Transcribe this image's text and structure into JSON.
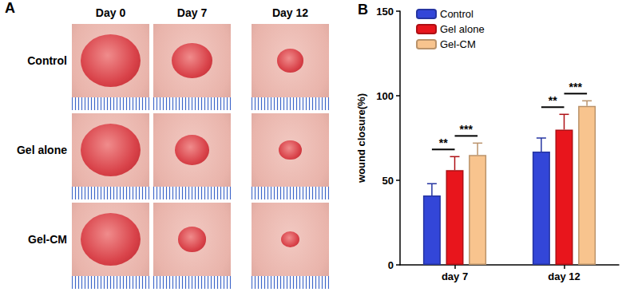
{
  "photo_panel": {
    "label": "A",
    "columns": [
      "Day 0",
      "Day 7",
      "Day 12"
    ],
    "rows": [
      "Control",
      "Gel alone",
      "Gel-CM"
    ]
  },
  "chart_data": {
    "type": "bar",
    "panel_label": "B",
    "categories": [
      "day 7",
      "day 12"
    ],
    "series": [
      {
        "name": "Control",
        "color": "#3346d8",
        "values": [
          41,
          67
        ],
        "errors": [
          7,
          8
        ]
      },
      {
        "name": "Gel alone",
        "color": "#e8151c",
        "values": [
          56,
          80
        ],
        "errors": [
          8,
          9
        ]
      },
      {
        "name": "Gel-CM",
        "color": "#f8c48e",
        "values": [
          65,
          94
        ],
        "errors": [
          7,
          3
        ]
      }
    ],
    "y_label": "wound closure(%)",
    "ylim": [
      0,
      150
    ],
    "yticks": [
      0,
      50,
      100,
      150
    ],
    "grid": false,
    "legend": "upper left",
    "annotations": [
      {
        "text": "**",
        "category": "day 7",
        "from": "Control",
        "to": "Gel alone"
      },
      {
        "text": "***",
        "category": "day 7",
        "from": "Gel alone",
        "to": "Gel-CM"
      },
      {
        "text": "**",
        "category": "day 12",
        "from": "Control",
        "to": "Gel alone"
      },
      {
        "text": "***",
        "category": "day 12",
        "from": "Gel alone",
        "to": "Gel-CM"
      }
    ]
  }
}
